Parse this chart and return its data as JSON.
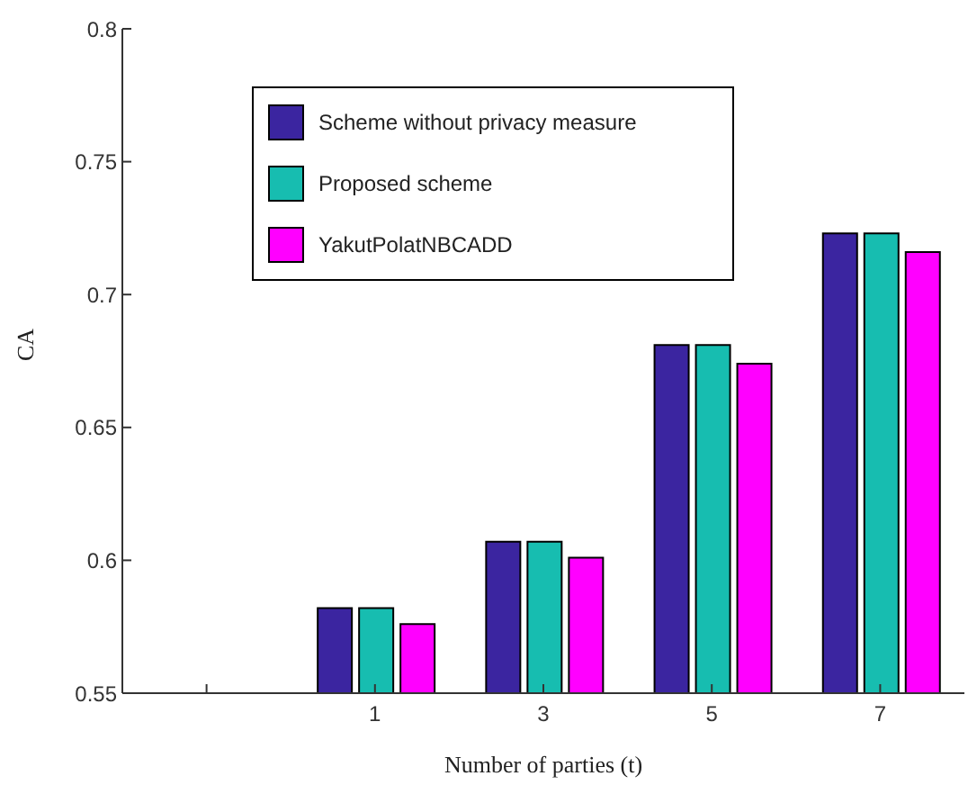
{
  "chart_data": {
    "type": "bar",
    "xlabel": "Number of parties (t)",
    "ylabel": "CA",
    "categories": [
      null,
      "1",
      "3",
      "5",
      "7"
    ],
    "series": [
      {
        "name": "Scheme without privacy measure",
        "color": "#3b25a0",
        "values": [
          null,
          0.582,
          0.607,
          0.681,
          0.723
        ]
      },
      {
        "name": "Proposed scheme",
        "color": "#17bdb0",
        "values": [
          null,
          0.582,
          0.607,
          0.681,
          0.723
        ]
      },
      {
        "name": "YakutPolatNBCADD",
        "color": "#ff00ff",
        "values": [
          null,
          0.576,
          0.601,
          0.674,
          0.716
        ]
      }
    ],
    "ylim": [
      0.55,
      0.8
    ],
    "yticks": [
      0.55,
      0.6,
      0.65,
      0.7,
      0.75,
      0.8
    ],
    "grid": false,
    "legend": "top left"
  }
}
